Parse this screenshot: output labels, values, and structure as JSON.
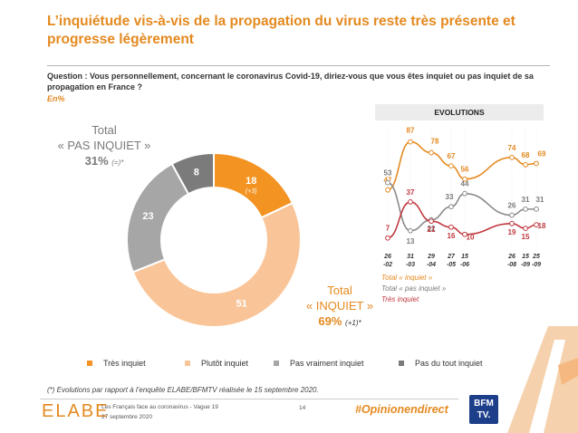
{
  "title": "L’inquiétude vis-à-vis de la propagation du virus reste très présente et progresse légèrement",
  "question": "Question : Vous personnellement, concernant le coronavirus Covid-19, diriez-vous que vous êtes inquiet ou pas inquiet de sa propagation en France ?",
  "unit": "En%",
  "totals": {
    "pas_inquiet_label_1": "Total",
    "pas_inquiet_label_2": "« PAS INQUIET »",
    "pas_inquiet_value": "31%",
    "pas_inquiet_change": "(=)*",
    "inquiet_label_1": "Total",
    "inquiet_label_2": "« INQUIET »",
    "inquiet_value": "69%",
    "inquiet_change": "(+1)*"
  },
  "colors": {
    "tres_inquiet": "#f39322",
    "plutot_inquiet": "#f9c598",
    "pas_vraiment": "#a6a6a6",
    "pas_du_tout": "#7b7b7b",
    "accent": "#e48a20",
    "tres_inquiet_line": "#c0383f"
  },
  "chart_data": [
    {
      "type": "pie",
      "categories": [
        "Très inquiet",
        "Plutôt inquiet",
        "Pas vraiment inquiet",
        "Pas du tout inquiet"
      ],
      "values": [
        18,
        51,
        23,
        8
      ],
      "annotations": [
        "(+3)",
        "",
        "",
        ""
      ],
      "legend": "bottom"
    },
    {
      "type": "line",
      "title": "EVOLUTIONS",
      "x": [
        "26 -02",
        "31 -03",
        "29 -04",
        "27 -05",
        "15 -06",
        "26 -08",
        "15 -09",
        "25 -09"
      ],
      "series": [
        {
          "name": "Total « inquiet »",
          "values": [
            47,
            87,
            78,
            67,
            56,
            74,
            68,
            69
          ]
        },
        {
          "name": "Total « pas inquiet »",
          "values": [
            53,
            13,
            22,
            33,
            44,
            26,
            31,
            31
          ]
        },
        {
          "name": "Très inquiet",
          "values": [
            7,
            37,
            21,
            16,
            10,
            19,
            15,
            18
          ]
        }
      ],
      "legend": "bottom-left"
    }
  ],
  "legend_labels": [
    "Très inquiet",
    "Plutôt inquiet",
    "Pas vraiment inquiet",
    "Pas du tout inquiet"
  ],
  "footnote": "(*) Evolutions par rapport à l’enquête ELABE/BFMTV réalisée le 15 septembre 2020.",
  "footer": {
    "brand": "ELABE",
    "study": "Les Français face au coronavirus - Vague 19",
    "date": "27 septembre 2020",
    "page": "14",
    "hashtag": "#Opinionendirect",
    "logo_line1": "BFM",
    "logo_line2": "TV."
  }
}
